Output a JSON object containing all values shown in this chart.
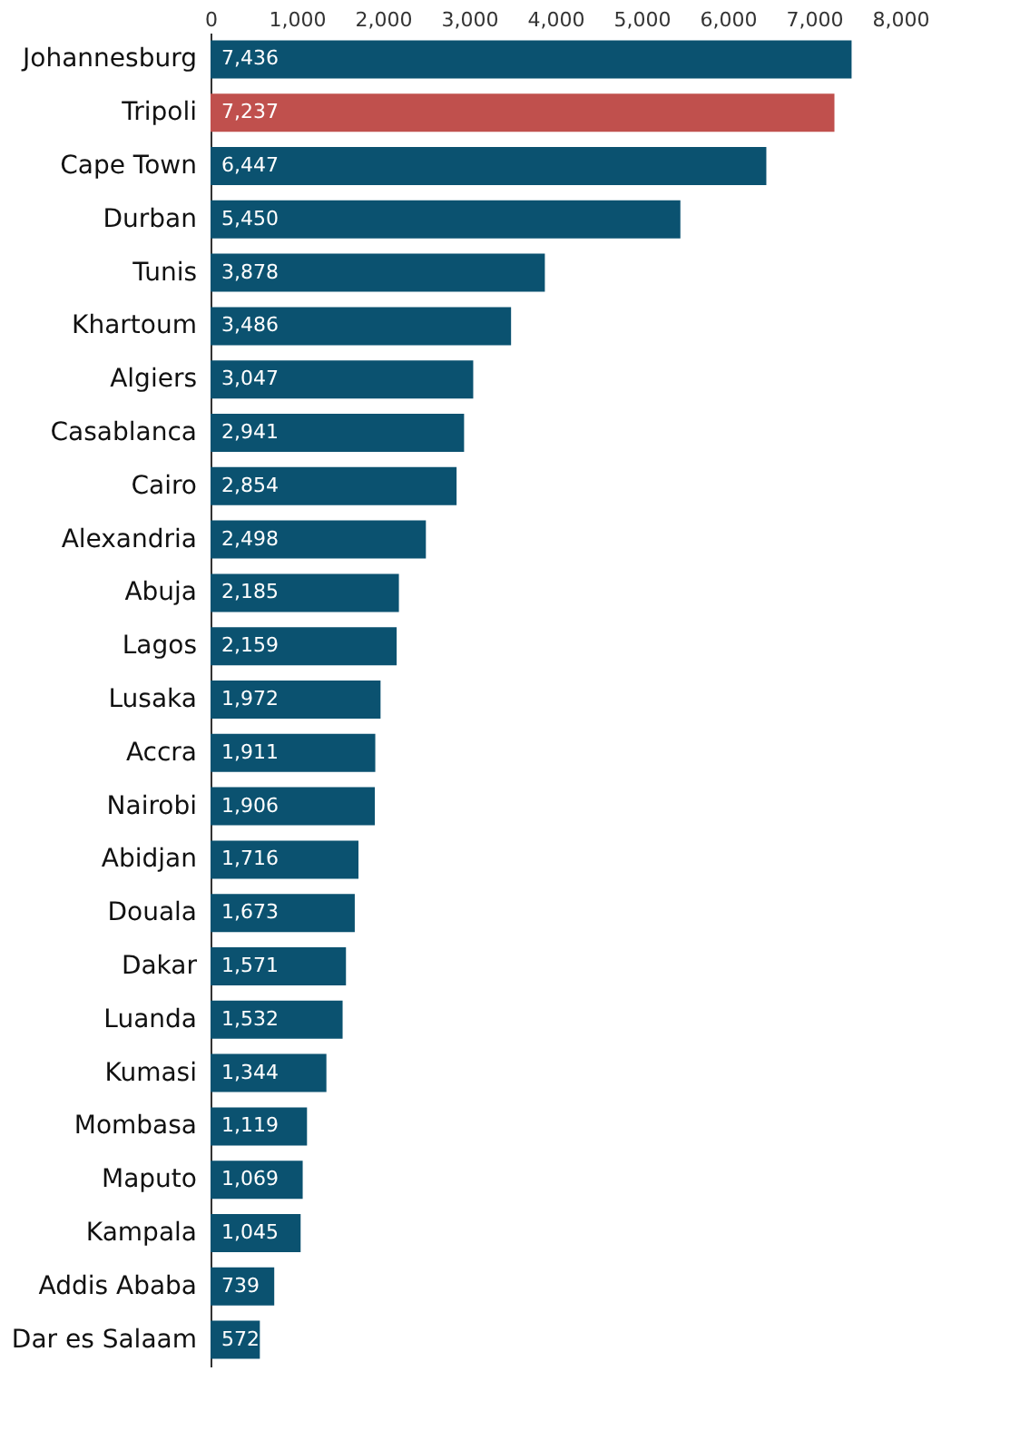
{
  "chart_data": {
    "type": "bar",
    "orientation": "horizontal",
    "categories": [
      "Johannesburg",
      "Tripoli",
      "Cape Town",
      "Durban",
      "Tunis",
      "Khartoum",
      "Algiers",
      "Casablanca",
      "Cairo",
      "Alexandria",
      "Abuja",
      "Lagos",
      "Lusaka",
      "Accra",
      "Nairobi",
      "Abidjan",
      "Douala",
      "Dakar",
      "Luanda",
      "Kumasi",
      "Mombasa",
      "Maputo",
      "Kampala",
      "Addis Ababa",
      "Dar es Salaam"
    ],
    "values": [
      7436,
      7237,
      6447,
      5450,
      3878,
      3486,
      3047,
      2941,
      2854,
      2498,
      2185,
      2159,
      1972,
      1911,
      1906,
      1716,
      1673,
      1571,
      1532,
      1344,
      1119,
      1069,
      1045,
      739,
      572
    ],
    "colors": [
      "#0b5270",
      "#c0504d",
      "#0b5270",
      "#0b5270",
      "#0b5270",
      "#0b5270",
      "#0b5270",
      "#0b5270",
      "#0b5270",
      "#0b5270",
      "#0b5270",
      "#0b5270",
      "#0b5270",
      "#0b5270",
      "#0b5270",
      "#0b5270",
      "#0b5270",
      "#0b5270",
      "#0b5270",
      "#0b5270",
      "#0b5270",
      "#0b5270",
      "#0b5270",
      "#0b5270",
      "#0b5270"
    ],
    "xlim": [
      0,
      8000
    ],
    "xticks": [
      {
        "value": 0,
        "label": "0"
      },
      {
        "value": 1000,
        "label": "1,000"
      },
      {
        "value": 2000,
        "label": "2,000"
      },
      {
        "value": 3000,
        "label": "3,000"
      },
      {
        "value": 4000,
        "label": "4,000"
      },
      {
        "value": 5000,
        "label": "5,000"
      },
      {
        "value": 6000,
        "label": "6,000"
      },
      {
        "value": 7000,
        "label": "7,000"
      },
      {
        "value": 8000,
        "label": "8,000"
      }
    ],
    "grid": false,
    "value_labels": [
      "7,436",
      "7,237",
      "6,447",
      "5,450",
      "3,878",
      "3,486",
      "3,047",
      "2,941",
      "2,854",
      "2,498",
      "2,185",
      "2,159",
      "1,972",
      "1,911",
      "1,906",
      "1,716",
      "1,673",
      "1,571",
      "1,532",
      "1,344",
      "1,119",
      "1,069",
      "1,045",
      "739",
      "572"
    ]
  }
}
